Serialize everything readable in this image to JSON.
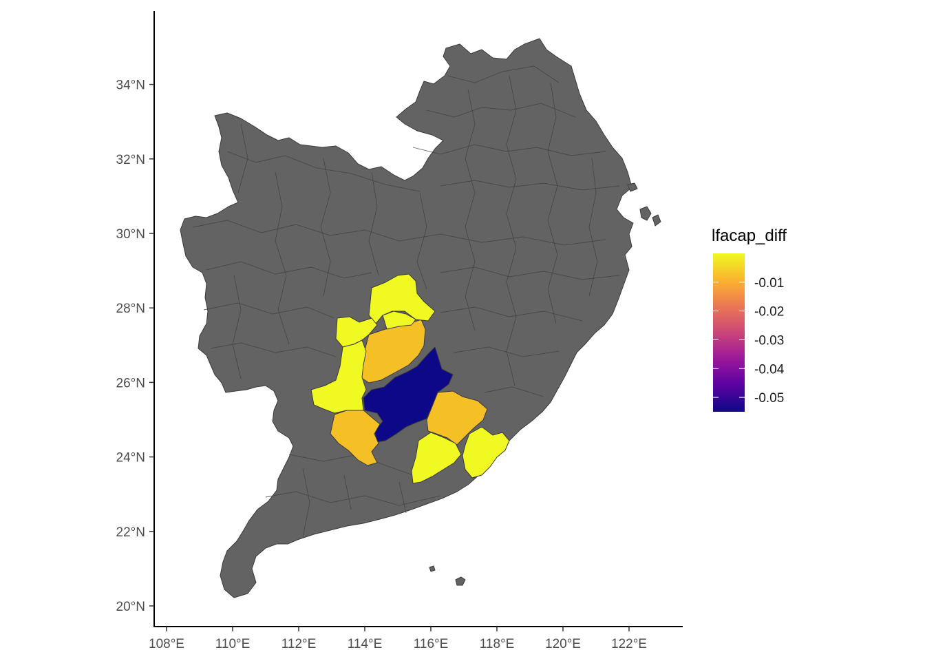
{
  "map": {
    "type": "choropleth",
    "base_color": "#636363",
    "x_axis": {
      "ticks": [
        108,
        110,
        112,
        114,
        116,
        118,
        120,
        122
      ],
      "labels": [
        "108°E",
        "110°E",
        "112°E",
        "114°E",
        "116°E",
        "118°E",
        "120°E",
        "122°E"
      ]
    },
    "y_axis": {
      "ticks": [
        20,
        22,
        24,
        26,
        28,
        30,
        32,
        34
      ],
      "labels": [
        "20°N",
        "22°N",
        "24°N",
        "26°N",
        "28°N",
        "30°N",
        "32°N",
        "34°N"
      ]
    },
    "lon_range": [
      107.9,
      123.6
    ],
    "lat_range": [
      19.6,
      35.8
    ],
    "legend": {
      "title": "lfacap_diff",
      "min": -0.055,
      "max": 0.0,
      "breaks": [
        -0.01,
        -0.02,
        -0.03,
        -0.04,
        -0.05
      ],
      "labels": [
        "-0.01",
        "-0.02",
        "-0.03",
        "-0.04",
        "-0.05"
      ],
      "colors": [
        "#0D0887",
        "#5B02A3",
        "#9A179B",
        "#CB4678",
        "#EB7852",
        "#FBB32F",
        "#F0F921"
      ]
    },
    "highlighted_regions": [
      {
        "value": -0.055,
        "color": "#0D0887"
      },
      {
        "value": -0.008,
        "color": "#F5C026"
      },
      {
        "value": -0.008,
        "color": "#F5C026"
      },
      {
        "value": -0.008,
        "color": "#F5C026"
      },
      {
        "value": -0.001,
        "color": "#F0F921"
      },
      {
        "value": -0.001,
        "color": "#F0F921"
      },
      {
        "value": -0.001,
        "color": "#F0F921"
      },
      {
        "value": -0.001,
        "color": "#F0F921"
      },
      {
        "value": -0.001,
        "color": "#F0F921"
      },
      {
        "value": -0.001,
        "color": "#F0F921"
      }
    ]
  }
}
